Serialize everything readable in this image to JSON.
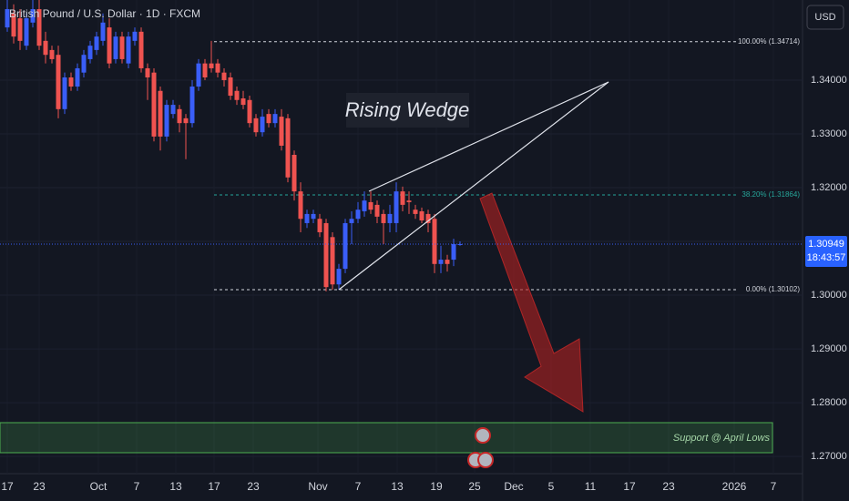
{
  "chart_data": {
    "type": "candlestick",
    "title": "British Pound / U.S. Dollar · 1D · FXCM",
    "currency": "USD",
    "up_color": "#3a5ef7",
    "down_color": "#ef5350",
    "ylim": [
      1.2668,
      1.3549
    ],
    "yticks": [
      {
        "value": 1.27,
        "label": "1.27000"
      },
      {
        "value": 1.28,
        "label": "1.28000"
      },
      {
        "value": 1.29,
        "label": "1.29000"
      },
      {
        "value": 1.3,
        "label": "1.30000"
      },
      {
        "value": 1.31,
        "label": "1.31000"
      },
      {
        "value": 1.32,
        "label": "1.32000"
      },
      {
        "value": 1.33,
        "label": "1.33000"
      },
      {
        "value": 1.34,
        "label": "1.34000"
      }
    ],
    "x_labels": [
      "17",
      "23",
      "Oct",
      "7",
      "13",
      "17",
      "23",
      "Nov",
      "7",
      "13",
      "19",
      "25",
      "Dec",
      "5",
      "11",
      "17",
      "23",
      "2026",
      "7"
    ],
    "open": [
      1.3498,
      1.3524,
      1.3515,
      1.3464,
      1.3507,
      1.3532,
      1.3473,
      1.3456,
      1.3447,
      1.3346,
      1.3405,
      1.3388,
      1.3414,
      1.3439,
      1.3456,
      1.3473,
      1.3498,
      1.3439,
      1.3481,
      1.3431,
      1.3473,
      1.349,
      1.3422,
      1.3414,
      1.338,
      1.3295,
      1.3337,
      1.3346,
      1.3329,
      1.332,
      1.3388,
      1.3431,
      1.3431,
      1.3431,
      1.3414,
      1.3405,
      1.338,
      1.3366,
      1.3363,
      1.3329,
      1.3303,
      1.3337,
      1.332,
      1.3332,
      1.3329,
      1.3261,
      1.3193,
      1.3134,
      1.3142,
      1.3142,
      1.3134,
      1.3108,
      1.302,
      1.3049,
      1.3134,
      1.3142,
      1.3156,
      1.3173,
      1.3168,
      1.3151,
      1.3134,
      1.3134,
      1.3193,
      1.3176,
      1.3159,
      1.3156,
      1.3151,
      1.3142,
      1.3058,
      1.3066,
      1.3066,
      1.3095
    ],
    "high": [
      1.3549,
      1.3541,
      1.3532,
      1.3524,
      1.3549,
      1.3549,
      1.349,
      1.3464,
      1.3464,
      1.3414,
      1.3414,
      1.3431,
      1.3456,
      1.3473,
      1.349,
      1.3524,
      1.3515,
      1.349,
      1.349,
      1.349,
      1.3498,
      1.3498,
      1.3431,
      1.3422,
      1.3388,
      1.3363,
      1.3363,
      1.3354,
      1.3337,
      1.34,
      1.3439,
      1.3439,
      1.3473,
      1.3439,
      1.3422,
      1.3414,
      1.3388,
      1.338,
      1.3371,
      1.3337,
      1.3346,
      1.3346,
      1.3346,
      1.3346,
      1.3337,
      1.3269,
      1.321,
      1.3159,
      1.3159,
      1.3151,
      1.3142,
      1.3117,
      1.3058,
      1.3142,
      1.3156,
      1.3173,
      1.3193,
      1.3193,
      1.3176,
      1.3159,
      1.3168,
      1.321,
      1.3202,
      1.3193,
      1.3168,
      1.3163,
      1.3159,
      1.3151,
      1.3092,
      1.3075,
      1.3105,
      1.31
    ],
    "low": [
      1.349,
      1.3468,
      1.3456,
      1.3456,
      1.3498,
      1.3456,
      1.3431,
      1.3431,
      1.3329,
      1.3337,
      1.338,
      1.338,
      1.3405,
      1.3431,
      1.3447,
      1.3464,
      1.3422,
      1.3431,
      1.3431,
      1.3422,
      1.3464,
      1.3414,
      1.3363,
      1.3286,
      1.3269,
      1.3286,
      1.3329,
      1.3303,
      1.3253,
      1.3312,
      1.338,
      1.34,
      1.3414,
      1.3405,
      1.3388,
      1.3363,
      1.3354,
      1.3346,
      1.3312,
      1.3295,
      1.3295,
      1.3312,
      1.3312,
      1.3269,
      1.321,
      1.3176,
      1.3117,
      1.3125,
      1.3134,
      1.3108,
      1.3007,
      1.301,
      1.301,
      1.3041,
      1.3095,
      1.3134,
      1.3146,
      1.3151,
      1.3134,
      1.3095,
      1.3117,
      1.3117,
      1.3156,
      1.3151,
      1.3142,
      1.3134,
      1.3117,
      1.3041,
      1.3041,
      1.3044,
      1.3054,
      1.3092
    ],
    "close": [
      1.3532,
      1.3481,
      1.3473,
      1.3515,
      1.3532,
      1.3464,
      1.3447,
      1.3439,
      1.3346,
      1.3405,
      1.3388,
      1.3422,
      1.3447,
      1.3464,
      1.3481,
      1.3507,
      1.3431,
      1.3481,
      1.3439,
      1.3481,
      1.349,
      1.3422,
      1.3405,
      1.3295,
      1.3295,
      1.3354,
      1.3354,
      1.332,
      1.332,
      1.3388,
      1.3431,
      1.3405,
      1.3422,
      1.3414,
      1.34,
      1.3371,
      1.3363,
      1.3354,
      1.332,
      1.3303,
      1.3332,
      1.332,
      1.3337,
      1.3278,
      1.3219,
      1.3193,
      1.3142,
      1.3151,
      1.3151,
      1.3117,
      1.3015,
      1.302,
      1.3049,
      1.3134,
      1.3142,
      1.3159,
      1.3176,
      1.3159,
      1.3146,
      1.3134,
      1.3151,
      1.3193,
      1.3168,
      1.3173,
      1.3151,
      1.3139,
      1.3134,
      1.3058,
      1.3066,
      1.3058,
      1.3095,
      1.3095
    ],
    "fib_levels": [
      {
        "label": "100.00% (1.34714)",
        "value": 1.34714,
        "color": "#d1d4dc"
      },
      {
        "label": "38.20% (1.31864)",
        "value": 1.31864,
        "color": "#26a69a"
      },
      {
        "label": "0.00% (1.30102)",
        "value": 1.30102,
        "color": "#d1d4dc"
      }
    ],
    "last_price": 1.30949,
    "countdown": "18:43:57",
    "annotations": [
      "Rising Wedge",
      "Support @ April Lows"
    ]
  }
}
